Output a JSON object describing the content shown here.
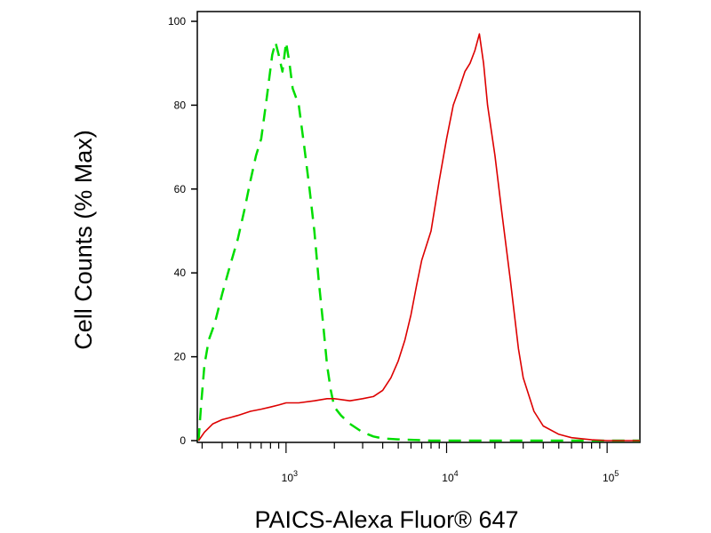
{
  "chart_data": {
    "type": "line",
    "xlabel": "PAICS-Alexa Fluor® 647",
    "ylabel": "Cell Counts (% Max)",
    "x_scale": "log",
    "xlim": [
      280,
      160000
    ],
    "ylim": [
      0,
      102
    ],
    "y_ticks": [
      {
        "value": 0,
        "label": "0"
      },
      {
        "value": 20,
        "label": "20"
      },
      {
        "value": 40,
        "label": "40"
      },
      {
        "value": 60,
        "label": "60"
      },
      {
        "value": 80,
        "label": "80"
      },
      {
        "value": 100,
        "label": "100"
      }
    ],
    "x_ticks": [
      {
        "value": 1000,
        "base": "10",
        "exp": "3"
      },
      {
        "value": 10000,
        "base": "10",
        "exp": "4"
      },
      {
        "value": 100000,
        "base": "10",
        "exp": "5"
      }
    ],
    "grid": false,
    "legend": "none",
    "series": [
      {
        "color": "#00dd00",
        "style": "dashed",
        "x": [
          285,
          295,
          310,
          330,
          360,
          400,
          450,
          500,
          550,
          600,
          650,
          700,
          760,
          820,
          860,
          900,
          950,
          1000,
          1050,
          1100,
          1200,
          1300,
          1400,
          1500,
          1600,
          1700,
          1800,
          1900,
          2000,
          2200,
          2500,
          3000,
          3500,
          4000,
          5000,
          6000,
          8000,
          10000,
          30000,
          100000,
          160000
        ],
        "y": [
          0,
          8,
          18,
          24,
          28,
          35,
          42,
          48,
          55,
          62,
          68,
          72,
          82,
          92,
          95,
          92,
          88,
          95,
          90,
          84,
          80,
          70,
          60,
          50,
          38,
          28,
          18,
          12,
          8,
          6,
          4,
          2,
          1,
          0.5,
          0.3,
          0.2,
          0,
          0,
          0,
          0,
          0
        ]
      },
      {
        "color": "#dd0000",
        "style": "solid",
        "x": [
          285,
          310,
          350,
          400,
          450,
          500,
          600,
          700,
          800,
          900,
          1000,
          1200,
          1500,
          1800,
          2000,
          2500,
          3000,
          3500,
          4000,
          4500,
          5000,
          5500,
          6000,
          6500,
          7000,
          8000,
          9000,
          10000,
          11000,
          12000,
          13000,
          14000,
          15000,
          16000,
          17000,
          18000,
          20000,
          22000,
          25000,
          28000,
          30000,
          35000,
          40000,
          50000,
          60000,
          80000,
          100000,
          160000
        ],
        "y": [
          0,
          2,
          4,
          5,
          5.5,
          6,
          7,
          7.5,
          8,
          8.5,
          9,
          9,
          9.5,
          10,
          10,
          9.5,
          10,
          10.5,
          12,
          15,
          19,
          24,
          30,
          37,
          43,
          50,
          62,
          72,
          80,
          84,
          88,
          90,
          93,
          97,
          90,
          80,
          68,
          55,
          38,
          22,
          15,
          7,
          3.5,
          1.5,
          0.7,
          0.2,
          0,
          0
        ]
      }
    ]
  }
}
